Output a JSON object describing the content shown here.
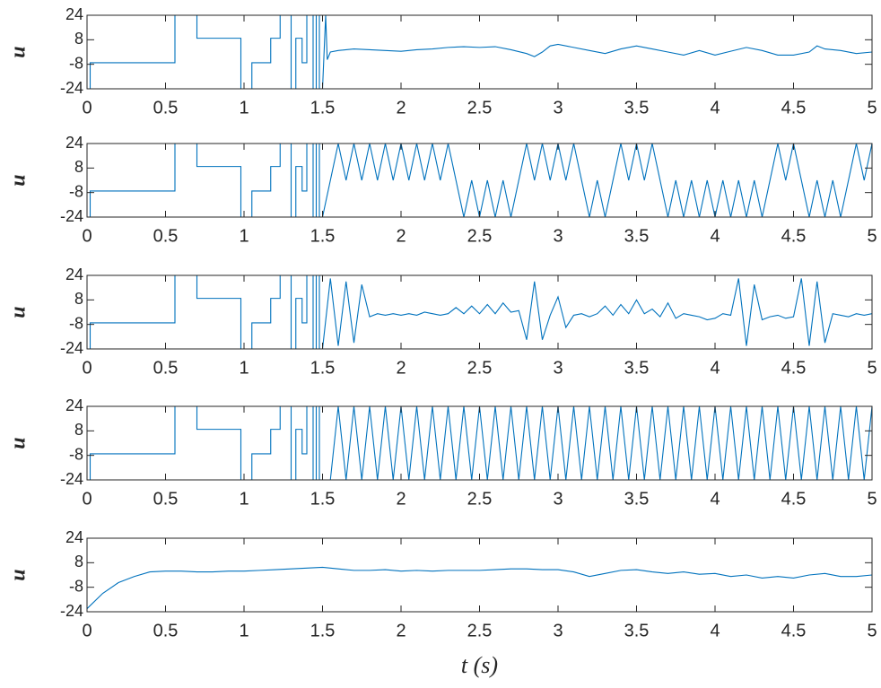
{
  "chart_data": [
    {
      "type": "line",
      "ylabel": "u",
      "color": "#0072bd",
      "xlim": [
        0,
        5
      ],
      "ylim": [
        -24,
        24
      ],
      "xticks": [
        0,
        0.5,
        1,
        1.5,
        2,
        2.5,
        3,
        3.5,
        4,
        4.5,
        5
      ],
      "yticks": [
        -24,
        -8,
        8,
        24
      ],
      "x": [
        0,
        0.02,
        0.02,
        0.56,
        0.56,
        0.7,
        0.7,
        0.98,
        0.98,
        1.05,
        1.05,
        1.17,
        1.17,
        1.23,
        1.23,
        1.3,
        1.3,
        1.33,
        1.33,
        1.37,
        1.37,
        1.4,
        1.4,
        1.44,
        1.44,
        1.46,
        1.46,
        1.48,
        1.48,
        1.5,
        1.52,
        1.53,
        1.55,
        1.6,
        1.7,
        1.8,
        1.9,
        2,
        2.1,
        2.2,
        2.3,
        2.4,
        2.5,
        2.6,
        2.7,
        2.8,
        2.85,
        2.9,
        2.95,
        3,
        3.1,
        3.2,
        3.3,
        3.4,
        3.5,
        3.6,
        3.7,
        3.8,
        3.9,
        4,
        4.1,
        4.2,
        4.3,
        4.4,
        4.5,
        4.6,
        4.65,
        4.7,
        4.8,
        4.9,
        5
      ],
      "values": [
        -24,
        -24,
        -7,
        -7,
        24,
        24,
        9,
        9,
        -24,
        -24,
        -7,
        -7,
        9,
        9,
        24,
        24,
        -24,
        -24,
        9,
        9,
        -7,
        -7,
        24,
        24,
        -24,
        -24,
        24,
        24,
        -24,
        -24,
        24,
        -5,
        0,
        1,
        2,
        1.5,
        1,
        0.5,
        1.5,
        2,
        3,
        3.5,
        3,
        3.5,
        1.5,
        -1,
        -3,
        0,
        4,
        5,
        3,
        1,
        -1,
        2,
        4,
        2,
        0,
        -2,
        1,
        -2,
        0.5,
        3,
        1,
        -2,
        -2,
        0,
        4,
        2,
        1,
        -1,
        0
      ]
    },
    {
      "type": "line",
      "ylabel": "u",
      "color": "#0072bd",
      "xlim": [
        0,
        5
      ],
      "ylim": [
        -24,
        24
      ],
      "xticks": [
        0,
        0.5,
        1,
        1.5,
        2,
        2.5,
        3,
        3.5,
        4,
        4.5,
        5
      ],
      "yticks": [
        -24,
        -8,
        8,
        24
      ],
      "x": [
        0,
        0.02,
        0.02,
        0.56,
        0.56,
        0.7,
        0.7,
        0.98,
        0.98,
        1.05,
        1.05,
        1.17,
        1.17,
        1.23,
        1.23,
        1.3,
        1.3,
        1.33,
        1.33,
        1.37,
        1.37,
        1.4,
        1.4,
        1.44,
        1.44,
        1.46,
        1.46,
        1.48,
        1.48,
        1.5,
        1.55,
        1.6,
        1.65,
        1.7,
        1.75,
        1.8,
        1.85,
        1.9,
        1.95,
        2,
        2.05,
        2.1,
        2.15,
        2.2,
        2.25,
        2.3,
        2.35,
        2.4,
        2.45,
        2.5,
        2.55,
        2.6,
        2.65,
        2.7,
        2.75,
        2.8,
        2.85,
        2.9,
        2.95,
        3,
        3.05,
        3.1,
        3.15,
        3.2,
        3.25,
        3.3,
        3.35,
        3.4,
        3.45,
        3.5,
        3.55,
        3.6,
        3.65,
        3.7,
        3.75,
        3.8,
        3.85,
        3.9,
        3.95,
        4,
        4.05,
        4.1,
        4.15,
        4.2,
        4.25,
        4.3,
        4.35,
        4.4,
        4.45,
        4.5,
        4.55,
        4.6,
        4.65,
        4.7,
        4.75,
        4.8,
        4.85,
        4.9,
        4.95,
        5
      ],
      "values": [
        -24,
        -24,
        -7,
        -7,
        24,
        24,
        9,
        9,
        -24,
        -24,
        -7,
        -7,
        9,
        9,
        24,
        24,
        -24,
        -24,
        9,
        9,
        -7,
        -7,
        24,
        24,
        -24,
        -24,
        24,
        24,
        -24,
        -24,
        0,
        24,
        0,
        24,
        0,
        24,
        0,
        24,
        0,
        24,
        0,
        24,
        0,
        24,
        0,
        24,
        0,
        -24,
        0,
        -24,
        0,
        -24,
        0,
        -24,
        0,
        24,
        0,
        24,
        0,
        24,
        0,
        24,
        0,
        -24,
        0,
        -24,
        0,
        24,
        0,
        24,
        0,
        24,
        0,
        -24,
        0,
        -24,
        0,
        -24,
        0,
        -24,
        0,
        -24,
        0,
        -24,
        0,
        -24,
        0,
        24,
        0,
        24,
        0,
        -24,
        0,
        -24,
        0,
        -24,
        0,
        24,
        0,
        24
      ]
    },
    {
      "type": "line",
      "ylabel": "u",
      "color": "#0072bd",
      "xlim": [
        0,
        5
      ],
      "ylim": [
        -24,
        24
      ],
      "xticks": [
        0,
        0.5,
        1,
        1.5,
        2,
        2.5,
        3,
        3.5,
        4,
        4.5,
        5
      ],
      "yticks": [
        -24,
        -8,
        8,
        24
      ],
      "x": [
        0,
        0.02,
        0.02,
        0.56,
        0.56,
        0.7,
        0.7,
        0.98,
        0.98,
        1.05,
        1.05,
        1.17,
        1.17,
        1.23,
        1.23,
        1.3,
        1.3,
        1.33,
        1.33,
        1.37,
        1.37,
        1.4,
        1.4,
        1.44,
        1.44,
        1.46,
        1.46,
        1.48,
        1.48,
        1.5,
        1.55,
        1.6,
        1.65,
        1.7,
        1.75,
        1.8,
        1.85,
        1.9,
        1.95,
        2,
        2.05,
        2.1,
        2.15,
        2.2,
        2.25,
        2.3,
        2.35,
        2.4,
        2.45,
        2.5,
        2.55,
        2.6,
        2.65,
        2.7,
        2.75,
        2.8,
        2.85,
        2.9,
        2.95,
        3,
        3.05,
        3.1,
        3.15,
        3.2,
        3.25,
        3.3,
        3.35,
        3.4,
        3.45,
        3.5,
        3.55,
        3.6,
        3.65,
        3.7,
        3.75,
        3.8,
        3.85,
        3.9,
        3.95,
        4,
        4.05,
        4.1,
        4.15,
        4.2,
        4.25,
        4.3,
        4.35,
        4.4,
        4.45,
        4.5,
        4.55,
        4.6,
        4.65,
        4.7,
        4.75,
        4.8,
        4.85,
        4.9,
        4.95,
        5
      ],
      "values": [
        -24,
        -24,
        -7,
        -7,
        24,
        24,
        9,
        9,
        -24,
        -24,
        -7,
        -7,
        9,
        9,
        24,
        24,
        -24,
        -24,
        9,
        9,
        -7,
        -7,
        24,
        24,
        -24,
        -24,
        24,
        24,
        -24,
        -24,
        22,
        -22,
        20,
        -20,
        18,
        -3,
        -1,
        -2,
        -1,
        -2,
        -1,
        -2,
        0,
        -1,
        -2,
        -1,
        3,
        -1,
        4,
        -1,
        5,
        -1,
        6,
        0,
        1,
        -18,
        20,
        -18,
        -2,
        10,
        -10,
        -2,
        -1,
        -3,
        -1,
        4,
        -2,
        5,
        -1,
        8,
        -1,
        2,
        -3,
        6,
        -4,
        -1,
        -2,
        -3,
        -5,
        -4,
        -1,
        -2,
        22,
        -22,
        18,
        -5,
        -3,
        -2,
        -4,
        -3,
        22,
        -22,
        20,
        -20,
        -1,
        -2,
        -3,
        -1,
        -2,
        -1
      ]
    },
    {
      "type": "line",
      "ylabel": "u",
      "color": "#0072bd",
      "xlim": [
        0,
        5
      ],
      "ylim": [
        -24,
        24
      ],
      "xticks": [
        0,
        0.5,
        1,
        1.5,
        2,
        2.5,
        3,
        3.5,
        4,
        4.5,
        5
      ],
      "yticks": [
        -24,
        -8,
        8,
        24
      ],
      "x": [
        0,
        0.02,
        0.02,
        0.56,
        0.56,
        0.7,
        0.7,
        0.98,
        0.98,
        1.05,
        1.05,
        1.17,
        1.17,
        1.23,
        1.23,
        1.3,
        1.3,
        1.33,
        1.33,
        1.37,
        1.37,
        1.4,
        1.4,
        1.44,
        1.44,
        1.46,
        1.46,
        1.48,
        1.48,
        1.5,
        1.55,
        1.6,
        1.65,
        1.7,
        1.75,
        1.8,
        1.85,
        1.9,
        1.95,
        2,
        2.05,
        2.1,
        2.15,
        2.2,
        2.25,
        2.3,
        2.35,
        2.4,
        2.45,
        2.5,
        2.55,
        2.6,
        2.65,
        2.7,
        2.75,
        2.8,
        2.85,
        2.9,
        2.95,
        3,
        3.05,
        3.1,
        3.15,
        3.2,
        3.25,
        3.3,
        3.35,
        3.4,
        3.45,
        3.5,
        3.55,
        3.6,
        3.65,
        3.7,
        3.75,
        3.8,
        3.85,
        3.9,
        3.95,
        4,
        4.05,
        4.1,
        4.15,
        4.2,
        4.25,
        4.3,
        4.35,
        4.4,
        4.45,
        4.5,
        4.55,
        4.6,
        4.65,
        4.7,
        4.75,
        4.8,
        4.85,
        4.9,
        4.95,
        5
      ],
      "values": [
        -24,
        -24,
        -7,
        -7,
        24,
        24,
        9,
        9,
        -24,
        -24,
        -7,
        -7,
        9,
        9,
        24,
        24,
        -24,
        -24,
        9,
        9,
        -7,
        -7,
        24,
        24,
        -24,
        -24,
        24,
        24,
        -24,
        -24,
        -24,
        24,
        -24,
        24,
        -24,
        24,
        -24,
        24,
        -24,
        24,
        -24,
        24,
        -24,
        24,
        -24,
        24,
        -24,
        24,
        -24,
        24,
        -24,
        24,
        -24,
        24,
        -24,
        24,
        -24,
        24,
        -24,
        24,
        -24,
        24,
        -24,
        24,
        -24,
        24,
        -24,
        24,
        -24,
        24,
        -24,
        24,
        -24,
        24,
        -24,
        24,
        -24,
        24,
        -24,
        24,
        -24,
        24,
        -24,
        24,
        -24,
        24,
        -24,
        24,
        -24,
        24,
        -24,
        24,
        -24,
        24,
        -24,
        24,
        -24,
        24,
        -24,
        24
      ]
    },
    {
      "type": "line",
      "ylabel": "u",
      "xlabel": "t (s)",
      "color": "#0072bd",
      "xlim": [
        0,
        5
      ],
      "ylim": [
        -24,
        24
      ],
      "xticks": [
        0,
        0.5,
        1,
        1.5,
        2,
        2.5,
        3,
        3.5,
        4,
        4.5,
        5
      ],
      "yticks": [
        -24,
        -8,
        8,
        24
      ],
      "x": [
        0,
        0.1,
        0.2,
        0.3,
        0.4,
        0.5,
        0.6,
        0.7,
        0.8,
        0.9,
        1,
        1.1,
        1.2,
        1.3,
        1.4,
        1.5,
        1.6,
        1.7,
        1.8,
        1.9,
        2,
        2.1,
        2.2,
        2.3,
        2.4,
        2.5,
        2.6,
        2.7,
        2.8,
        2.9,
        3,
        3.1,
        3.2,
        3.3,
        3.4,
        3.5,
        3.6,
        3.7,
        3.8,
        3.9,
        4,
        4.1,
        4.2,
        4.3,
        4.4,
        4.5,
        4.6,
        4.7,
        4.8,
        4.9,
        5
      ],
      "values": [
        -22,
        -12,
        -5,
        -1,
        2,
        2.5,
        2.5,
        2,
        2,
        2.5,
        2.5,
        3,
        3.5,
        4,
        4.5,
        5,
        4,
        3,
        3,
        3.5,
        2.5,
        3,
        2.5,
        3,
        3,
        3,
        3.5,
        4,
        4,
        3.5,
        3.5,
        2,
        -1,
        1,
        3,
        3.5,
        2,
        1,
        2,
        0.5,
        1,
        -1,
        0,
        -2,
        -1,
        -2,
        0,
        1,
        -1,
        -1,
        0
      ]
    }
  ]
}
